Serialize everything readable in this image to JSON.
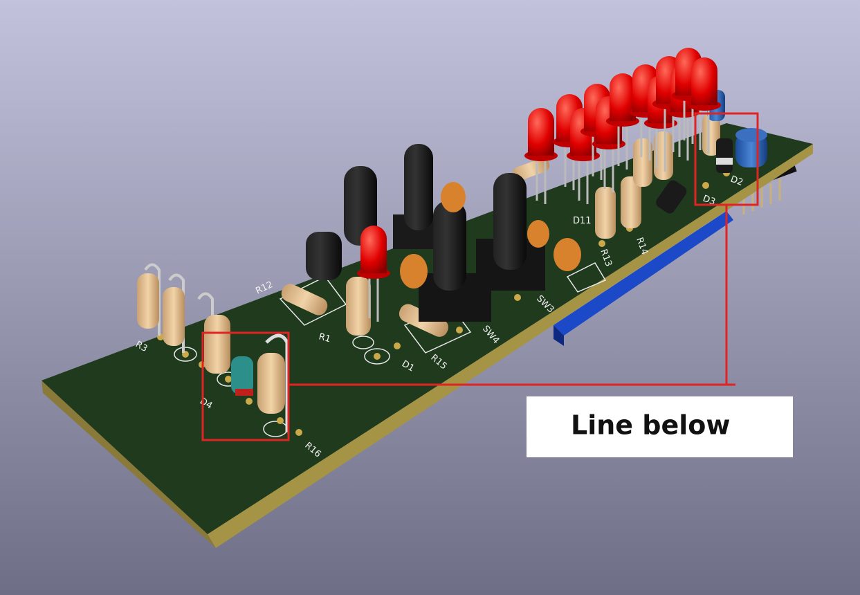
{
  "annotation": {
    "text": "Line below"
  },
  "silkscreen_labels": [
    "R3",
    "D4",
    "R16",
    "R12",
    "R1",
    "D1",
    "R15",
    "SW4",
    "SW3",
    "R13",
    "R14",
    "D3",
    "D2",
    "D11"
  ]
}
